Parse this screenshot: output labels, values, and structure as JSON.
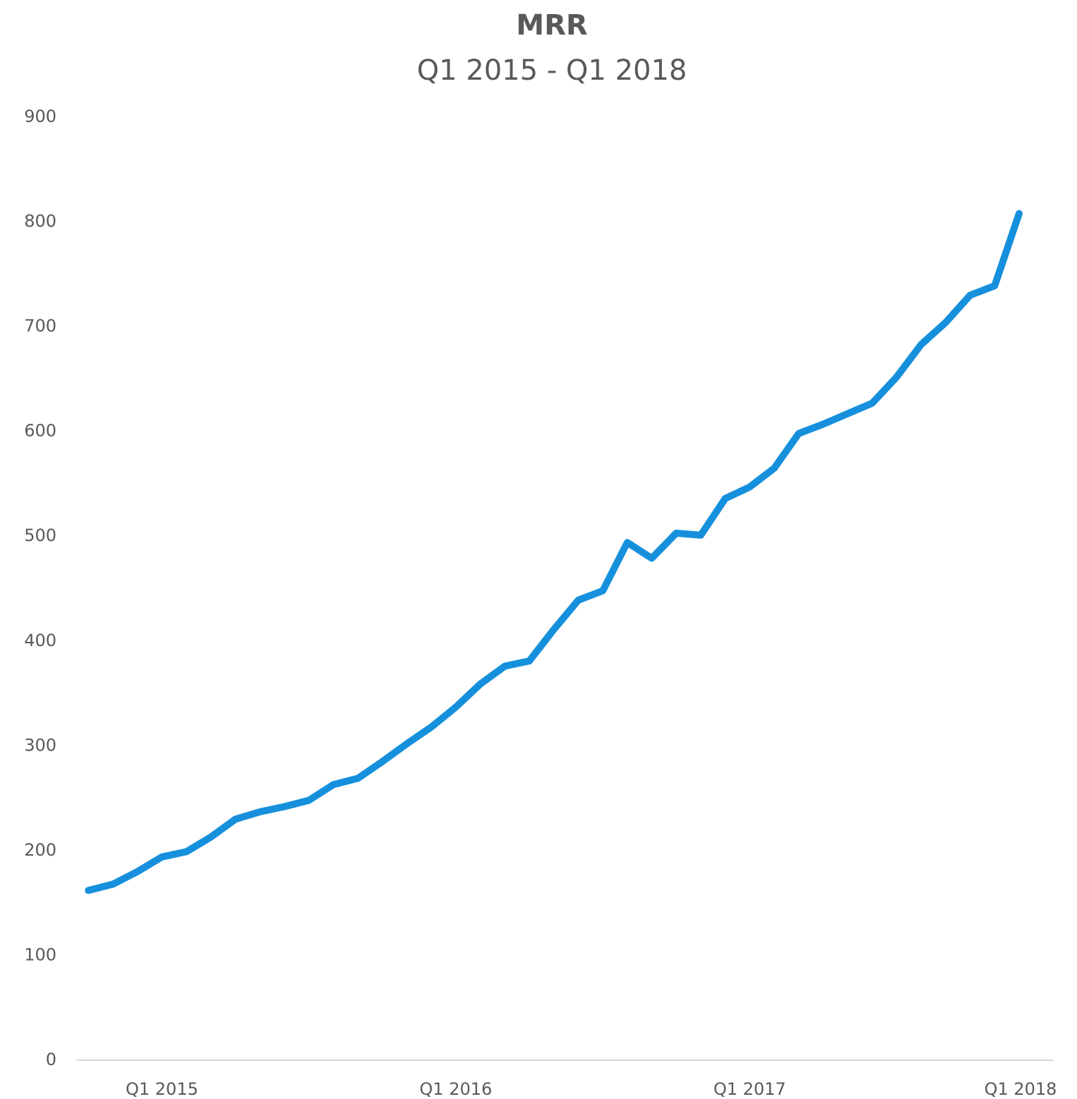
{
  "chart_data": {
    "type": "line",
    "title": "MRR",
    "subtitle": "Q1 2015 - Q1 2018",
    "categories": [
      null,
      null,
      null,
      "Q1 2015",
      null,
      null,
      null,
      null,
      null,
      null,
      null,
      null,
      null,
      null,
      null,
      "Q1 2016",
      null,
      null,
      null,
      null,
      null,
      null,
      null,
      null,
      null,
      null,
      null,
      "Q1 2017",
      null,
      null,
      null,
      null,
      null,
      null,
      null,
      null,
      null,
      null,
      null,
      "Q1 2018"
    ],
    "series": [
      {
        "name": "MRR",
        "color": "#1690dc",
        "values": [
          162,
          168,
          180,
          194,
          199,
          213,
          230,
          237,
          242,
          248,
          263,
          269,
          285,
          302,
          318,
          337,
          359,
          376,
          381,
          411,
          439,
          448,
          494,
          479,
          503,
          501,
          536,
          547,
          565,
          598,
          607,
          617,
          627,
          652,
          683,
          704,
          730,
          739,
          808,
          null
        ]
      }
    ],
    "ylim": [
      0,
      900
    ],
    "yticks": [
      0,
      100,
      200,
      300,
      400,
      500,
      600,
      700,
      800,
      900
    ],
    "grid": false
  }
}
